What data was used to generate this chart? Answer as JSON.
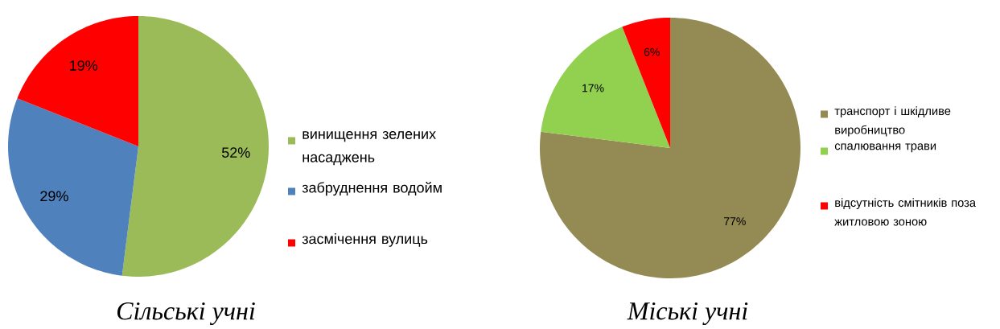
{
  "chart_data": [
    {
      "type": "pie",
      "title": "Сільські учні",
      "categories": [
        "винищення зелених насаджень",
        "забруднення водойм",
        "засмічення вулиць"
      ],
      "values": [
        52,
        29,
        19
      ],
      "value_labels": [
        "52%",
        "29%",
        "19%"
      ],
      "colors": [
        "#9bbb59",
        "#4f81bd",
        "#ff0000"
      ],
      "legend": "right"
    },
    {
      "type": "pie",
      "title": "Міські учні",
      "categories": [
        "транспорт і шкідливе виробництво",
        "спалювання трави",
        "відсутність смітників поза житловою зоною"
      ],
      "values": [
        77,
        17,
        6
      ],
      "value_labels": [
        "77%",
        "17%",
        "6%"
      ],
      "colors": [
        "#948a54",
        "#92d050",
        "#ff0000"
      ],
      "legend": "right"
    }
  ]
}
